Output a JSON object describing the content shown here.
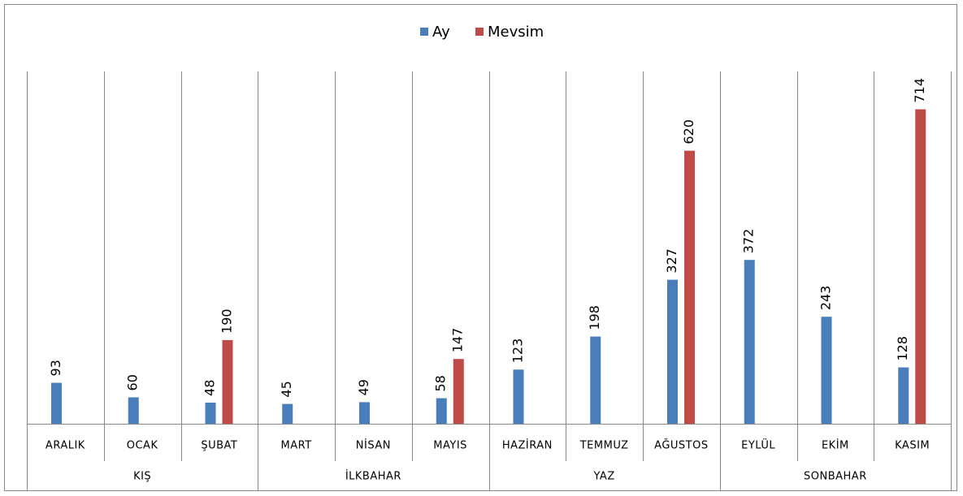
{
  "chart_data": {
    "type": "bar",
    "categories": [
      "ARALIK",
      "OCAK",
      "ŞUBAT",
      "MART",
      "NİSAN",
      "MAYIS",
      "HAZİRAN",
      "TEMMUZ",
      "AĞUSTOS",
      "EYLÜL",
      "EKİM",
      "KASIM"
    ],
    "groups": [
      "KIŞ",
      "İLKBAHAR",
      "YAZ",
      "SONBAHAR"
    ],
    "series": [
      {
        "name": "Ay",
        "color": "#4a7ebb",
        "values": [
          93,
          60,
          48,
          45,
          49,
          58,
          123,
          198,
          327,
          372,
          243,
          128
        ]
      },
      {
        "name": "Mevsim",
        "color": "#be4b48",
        "values": [
          null,
          null,
          190,
          null,
          null,
          147,
          null,
          null,
          620,
          null,
          null,
          714
        ]
      }
    ],
    "ylim": [
      0,
      800
    ],
    "legend": "top"
  }
}
